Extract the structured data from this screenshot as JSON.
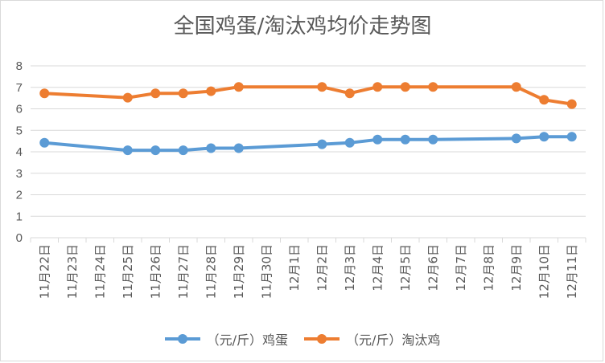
{
  "chart_data": {
    "type": "line",
    "title": "全国鸡蛋/淘汰鸡均价走势图",
    "categories": [
      "11月22日",
      "11月23日",
      "11月24日",
      "11月25日",
      "11月26日",
      "11月27日",
      "11月28日",
      "11月29日",
      "11月30日",
      "12月1日",
      "12月2日",
      "12月3日",
      "12月4日",
      "12月5日",
      "12月6日",
      "12月7日",
      "12月8日",
      "12月9日",
      "12月10日",
      "12月11日"
    ],
    "series": [
      {
        "name": "（元/斤）鸡蛋",
        "color": "#5b9bd5",
        "values": [
          4.42,
          null,
          null,
          4.07,
          4.07,
          4.07,
          4.17,
          4.17,
          null,
          null,
          4.35,
          4.42,
          4.57,
          4.57,
          4.57,
          null,
          null,
          4.62,
          4.7,
          4.7
        ]
      },
      {
        "name": "（元/斤）淘汰鸡",
        "color": "#ed7d31",
        "values": [
          6.72,
          null,
          null,
          6.52,
          6.72,
          6.72,
          6.82,
          7.02,
          null,
          null,
          7.02,
          6.72,
          7.02,
          7.02,
          7.02,
          null,
          null,
          7.02,
          6.42,
          6.22
        ]
      }
    ],
    "yticks": [
      "0",
      "1",
      "2",
      "3",
      "4",
      "5",
      "6",
      "7",
      "8"
    ],
    "ylim": [
      0,
      8
    ],
    "grid": true,
    "legend": "bottom"
  }
}
